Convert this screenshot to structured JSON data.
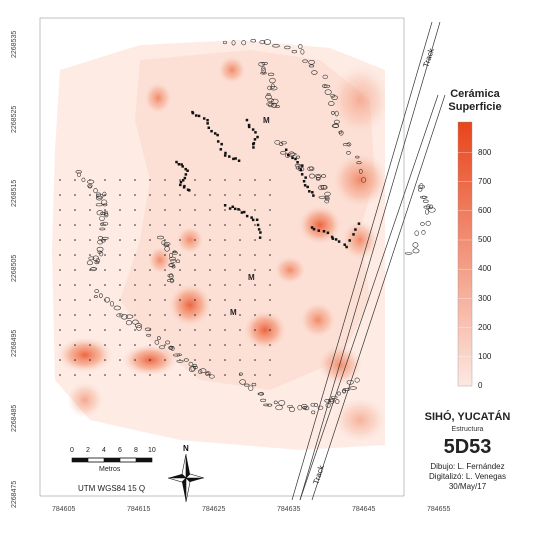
{
  "map": {
    "y_ticks": [
      "2268535",
      "2268525",
      "2268515",
      "2268505",
      "2268495",
      "2268485",
      "2268475"
    ],
    "x_ticks": [
      "784605",
      "784615",
      "784625",
      "784635",
      "784645",
      "784655"
    ],
    "track_top": "Track",
    "track_bottom": "Track",
    "m_labels": [
      "M",
      "M",
      "M"
    ]
  },
  "legend": {
    "title_line1": "Cerámica",
    "title_line2": "Superficie",
    "values": [
      "800",
      "700",
      "600",
      "500",
      "400",
      "300",
      "200",
      "100",
      "0"
    ],
    "color_max": "#e8441a",
    "color_min": "#fde8e1"
  },
  "site": {
    "name": "SIHÓ, YUCATÁN",
    "subtitle": "Estructura",
    "code": "5D53",
    "dibujo": "Dibujo: L. Fernández",
    "digitalizo": "Digitalizó: L. Venegas",
    "date": "30/May/17"
  },
  "scale": {
    "ticks": [
      "0",
      "2",
      "4",
      "6",
      "8",
      "10"
    ],
    "unit": "Metros",
    "projection": "UTM WGS84 15 Q"
  },
  "north": "N"
}
